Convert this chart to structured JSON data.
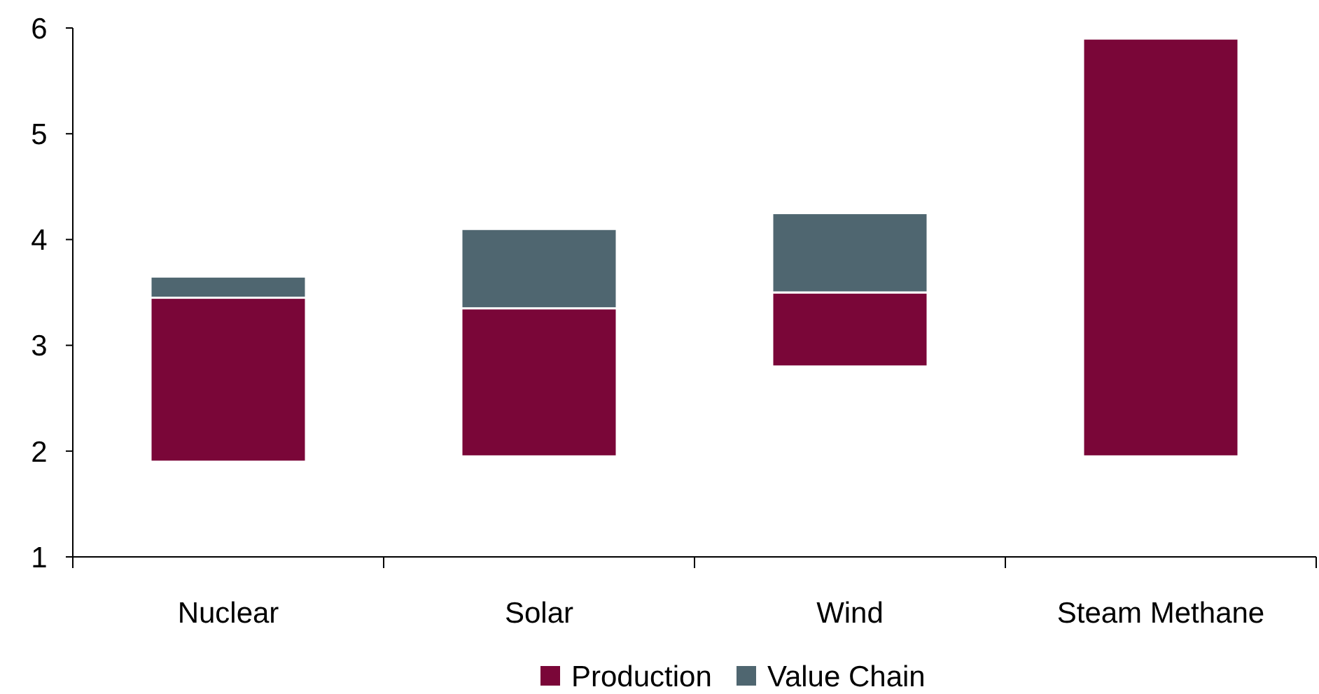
{
  "chart_data": {
    "type": "bar",
    "categories": [
      "Nuclear",
      "Solar",
      "Wind",
      "Steam Methane"
    ],
    "series": [
      {
        "name": "Production",
        "color": "#7a0638",
        "base": [
          1.9,
          1.95,
          2.8,
          1.95
        ],
        "values": [
          1.55,
          1.4,
          0.7,
          3.95
        ]
      },
      {
        "name": "Value Chain",
        "color": "#4f6670",
        "base": [
          3.45,
          3.35,
          3.5,
          null
        ],
        "values": [
          0.2,
          0.75,
          0.75,
          null
        ]
      }
    ],
    "ylim": [
      1,
      6
    ],
    "yticks": [
      1,
      2,
      3,
      4,
      5,
      6
    ],
    "grid": false,
    "legend": "bottom"
  }
}
